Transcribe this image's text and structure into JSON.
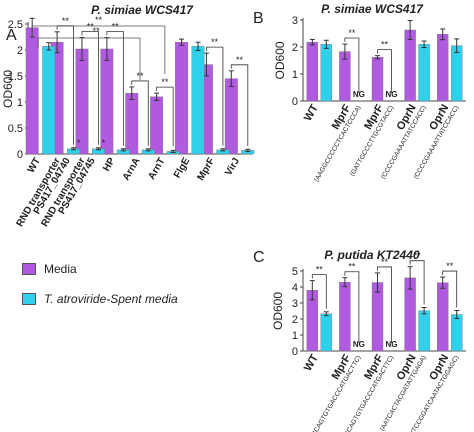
{
  "colors": {
    "media": "#b05ae0",
    "spent": "#2fd0ea",
    "err": "#333333",
    "frame": "#444444"
  },
  "legend": {
    "media_label": "Media",
    "spent_label": "T. atroviride-Spent media"
  },
  "chart_data": [
    {
      "type": "bar",
      "panel_letter": "A",
      "title": "P. simiae WCS417",
      "ylabel": "OD600",
      "ylim": [
        0,
        2.5
      ],
      "yticks": [
        0,
        0.5,
        1,
        1.5,
        2,
        2.5
      ],
      "categories": [
        "WT",
        "RND transporter PS417_04740",
        "RND transporter PS417_04745",
        "HP",
        "ArnA",
        "ArnT",
        "FlgE",
        "MprF",
        "VirJ"
      ],
      "tick_labels": [
        "WT",
        "RND transporter",
        "PS417_04740",
        "RND transporter",
        "PS417_04745",
        "HP",
        "ArnA",
        "ArnT",
        "FlgE",
        "MprF",
        "VirJ"
      ],
      "series": [
        {
          "name": "Media",
          "values": [
            2.43,
            2.15,
            2.02,
            2.02,
            1.17,
            1.1,
            2.15,
            1.72,
            1.45
          ],
          "errors": [
            0.18,
            0.2,
            0.22,
            0.22,
            0.12,
            0.07,
            0.06,
            0.22,
            0.15
          ]
        },
        {
          "name": "T. atroviride-Spent media",
          "values": [
            2.07,
            0.1,
            0.1,
            0.08,
            0.08,
            0.05,
            2.07,
            0.08,
            0.07
          ],
          "errors": [
            0.07,
            0.02,
            0.02,
            0.02,
            0.02,
            0.02,
            0.08,
            0.02,
            0.02
          ]
        }
      ],
      "annotations": [
        {
          "text": "**",
          "category": 1
        },
        {
          "text": "*",
          "category": 1
        },
        {
          "text": "**",
          "category": 2
        },
        {
          "text": "*",
          "category": 2
        },
        {
          "text": "**",
          "category": 3
        },
        {
          "text": "**",
          "category": 4
        },
        {
          "text": "**",
          "category": 5
        },
        {
          "text": "**",
          "category": 7
        },
        {
          "text": "**",
          "category": 8
        },
        {
          "text": "**",
          "note": "bracket WT to ArnT"
        },
        {
          "text": "**",
          "note": "bracket WT to ArnA"
        }
      ]
    },
    {
      "type": "bar",
      "panel_letter": "B",
      "title": "P. simiae WCS417",
      "ylabel": "OD600",
      "ylim": [
        0,
        3
      ],
      "yticks": [
        0,
        1,
        2,
        3
      ],
      "categories": [
        "WT",
        "MprF",
        "MprF",
        "OprN",
        "OprN"
      ],
      "sublabels": [
        "",
        "(AAGGCCCCCTCACTCCCA)",
        "(GATTGCCCTTGCGTACC)",
        "(CCCCGAAAATTATCCACC)",
        "(CCCCGAAAATTATCCACC)"
      ],
      "series": [
        {
          "name": "Media",
          "values": [
            2.18,
            1.83,
            1.62,
            2.63,
            2.47
          ],
          "errors": [
            0.1,
            0.28,
            0.06,
            0.35,
            0.2
          ]
        },
        {
          "name": "T. atroviride-Spent media",
          "values": [
            2.1,
            0,
            0,
            2.1,
            2.05
          ],
          "errors": [
            0.15,
            0,
            0,
            0.12,
            0.25
          ]
        }
      ],
      "annotations": [
        {
          "text": "**",
          "category": 1
        },
        {
          "text": "NG",
          "category": 1
        },
        {
          "text": "**",
          "category": 2
        },
        {
          "text": "NG",
          "category": 2
        }
      ]
    },
    {
      "type": "bar",
      "panel_letter": "C",
      "title": "P. putida KT2440",
      "ylabel": "OD600",
      "ylim": [
        0,
        5
      ],
      "yticks": [
        0,
        1,
        2,
        3,
        4,
        5
      ],
      "categories": [
        "WT",
        "MprF",
        "MprF",
        "OprN",
        "OprN"
      ],
      "sublabels": [
        "",
        "(CCAGTGTGACCCATGACTTC)",
        "(CCAGTGTGACCCATGACTTC)",
        "(AATCACTACGATATTGAGA)",
        "(TCCGGATCAATACTGGAGC)"
      ],
      "series": [
        {
          "name": "Media",
          "values": [
            3.8,
            4.3,
            4.28,
            4.57,
            4.27
          ],
          "errors": [
            0.6,
            0.28,
            0.6,
            0.7,
            0.35
          ]
        },
        {
          "name": "T. atroviride-Spent media",
          "values": [
            2.33,
            0,
            0,
            2.52,
            2.28
          ],
          "errors": [
            0.12,
            0,
            0,
            0.2,
            0.25
          ]
        }
      ],
      "annotations": [
        {
          "text": "**",
          "category": 0
        },
        {
          "text": "**",
          "category": 1
        },
        {
          "text": "NG",
          "category": 1
        },
        {
          "text": "**",
          "category": 2
        },
        {
          "text": "NG",
          "category": 2
        },
        {
          "text": "**",
          "category": 3
        },
        {
          "text": "**",
          "category": 4
        }
      ]
    }
  ]
}
